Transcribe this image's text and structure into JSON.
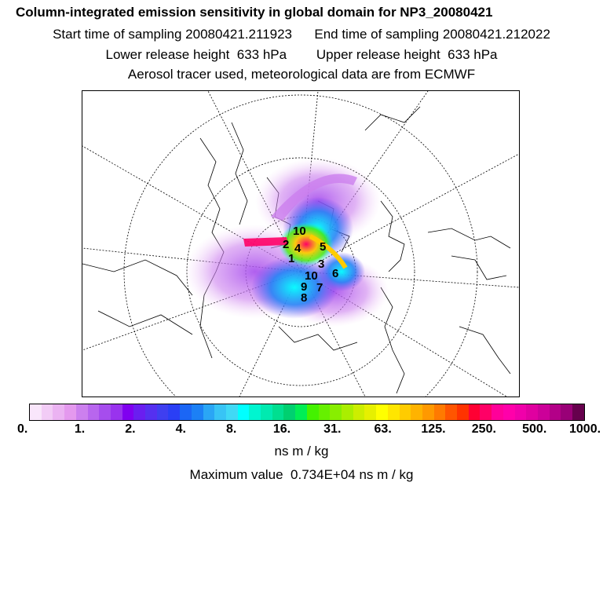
{
  "header": {
    "title": "Column-integrated emission sensitivity in global domain for NP3_20080421",
    "start_time": "Start time of sampling 20080421.211923",
    "end_time": "End time of sampling 20080421.212022",
    "lower_release": "Lower release height  633 hPa",
    "upper_release": "Upper release height  633 hPa",
    "note": "Aerosol tracer used, meteorological data are from ECMWF"
  },
  "map": {
    "projection": "polar stereographic (north pole)",
    "release_labels": [
      "10",
      "5",
      "2",
      "4",
      "1",
      "3",
      "6",
      "7",
      "8",
      "9",
      "10"
    ]
  },
  "colorbar": {
    "colors": [
      "#f9e6fb",
      "#f2ccf6",
      "#ebb3f2",
      "#e499ee",
      "#cc80ee",
      "#b866ee",
      "#a64ded",
      "#9933ee",
      "#8000f0",
      "#6a1ef0",
      "#5530f0",
      "#3f3ff0",
      "#2a3ff5",
      "#1b66f5",
      "#1c80f5",
      "#2aa6f5",
      "#38c4f5",
      "#40d9f5",
      "#00ffff",
      "#00f5d0",
      "#00eab0",
      "#00df90",
      "#00d070",
      "#00ee55",
      "#44f200",
      "#66f000",
      "#88ee00",
      "#aaee00",
      "#ccee00",
      "#e6f000",
      "#ffff00",
      "#ffe600",
      "#ffcc00",
      "#ffb300",
      "#ff9900",
      "#ff7a00",
      "#ff5500",
      "#ff3300",
      "#ff0033",
      "#ff0066",
      "#ff0099",
      "#ff00aa",
      "#f000aa",
      "#e000a0",
      "#cc0099",
      "#b30088",
      "#990077",
      "#66004d"
    ],
    "tick_labels": [
      "0.",
      "1.",
      "2.",
      "4.",
      "8.",
      "16.",
      "31.",
      "63.",
      "125.",
      "250.",
      "500.",
      "1000."
    ],
    "units": "ns m / kg"
  },
  "max_value": "Maximum value  0.734E+04 ns m / kg"
}
